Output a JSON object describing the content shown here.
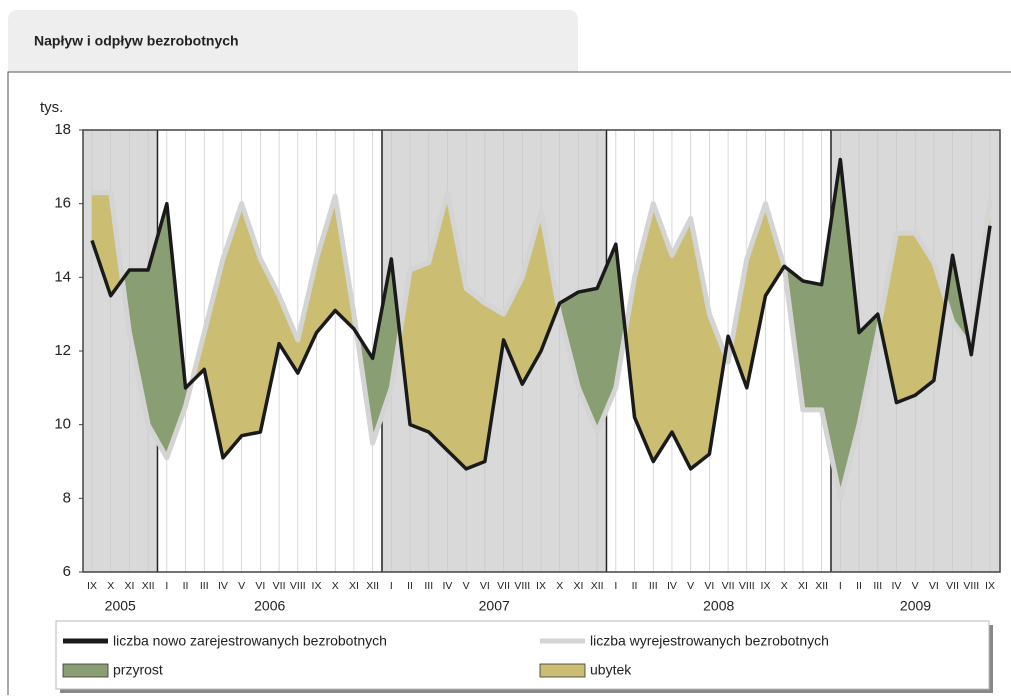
{
  "chart_data": {
    "type": "line",
    "title": "Napływ i odpływ bezrobotnych",
    "y_unit": "tys.",
    "categories": [
      "IX",
      "X",
      "XI",
      "XII",
      "I",
      "II",
      "III",
      "IV",
      "V",
      "VI",
      "VII",
      "VIII",
      "IX",
      "X",
      "XI",
      "XII",
      "I",
      "II",
      "III",
      "IV",
      "V",
      "VI",
      "VII",
      "VIII",
      "IX",
      "X",
      "XI",
      "XII",
      "I",
      "II",
      "III",
      "IV",
      "V",
      "VI",
      "VII",
      "VIII",
      "IX",
      "X",
      "XI",
      "XII",
      "I",
      "II",
      "III",
      "IV",
      "V",
      "VI",
      "VII",
      "VIII",
      "IX"
    ],
    "years": [
      "2005",
      "2006",
      "2007",
      "2008",
      "2009"
    ],
    "ylim": [
      6,
      18
    ],
    "yticks": [
      6,
      8,
      10,
      12,
      14,
      16,
      18
    ],
    "series": [
      {
        "name": "liczba nowo zarejestrowanych bezrobotnych",
        "color": "#1a1a1a",
        "values": [
          15.0,
          13.5,
          14.2,
          14.2,
          16.0,
          11.0,
          11.5,
          9.1,
          9.7,
          9.8,
          12.2,
          11.4,
          12.5,
          13.1,
          12.6,
          11.8,
          14.5,
          10.0,
          9.8,
          9.3,
          8.8,
          9.0,
          12.3,
          11.1,
          12.0,
          13.3,
          13.6,
          13.7,
          14.9,
          10.2,
          9.0,
          9.8,
          8.8,
          9.2,
          12.4,
          11.0,
          13.5,
          14.3,
          13.9,
          13.8,
          17.2,
          12.5,
          13.0,
          10.6,
          10.8,
          11.2,
          14.6,
          11.9,
          15.4
        ]
      },
      {
        "name": "liczba wyrejestrowanych bezrobotnych",
        "color": "#d4d4d4",
        "values": [
          16.3,
          16.3,
          12.5,
          10.0,
          9.1,
          10.5,
          12.5,
          14.5,
          16.0,
          14.5,
          13.5,
          12.3,
          14.5,
          16.2,
          13.0,
          9.5,
          11.0,
          14.2,
          14.4,
          16.3,
          13.7,
          13.3,
          13.0,
          14.0,
          15.8,
          13.0,
          11.0,
          9.8,
          11.0,
          14.0,
          16.0,
          14.6,
          15.6,
          13.0,
          11.7,
          14.5,
          16.0,
          14.3,
          10.4,
          10.4,
          8.0,
          10.0,
          12.5,
          15.2,
          15.2,
          14.4,
          12.8,
          12.1,
          16.1
        ]
      }
    ],
    "fills": [
      {
        "name": "przyrost",
        "color": "#8a9e74"
      },
      {
        "name": "ubytek",
        "color": "#cbbd72"
      }
    ]
  }
}
